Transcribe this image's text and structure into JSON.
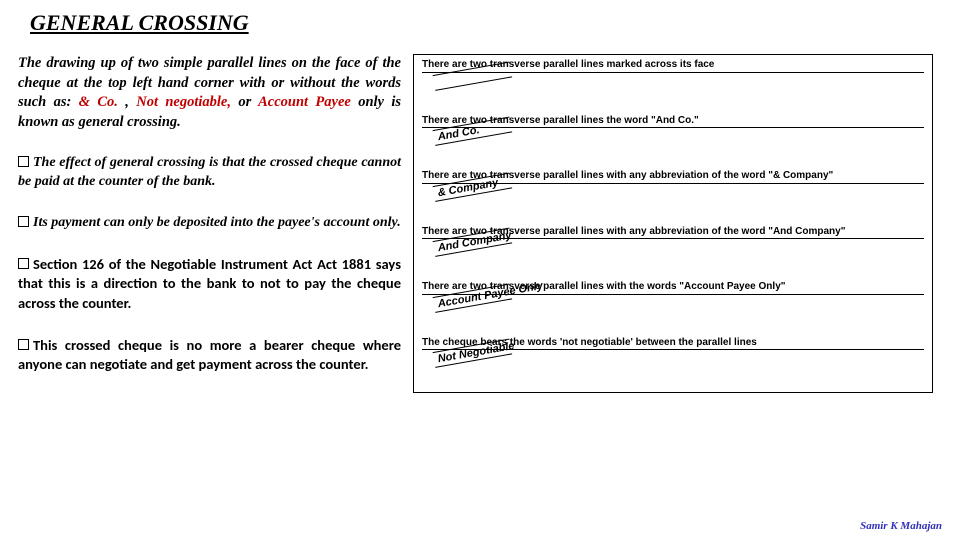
{
  "title": "GENERAL CROSSING",
  "intro": {
    "pre": "The drawing up of two simple parallel lines on the face of the cheque at the top left hand corner with or without the words such as: ",
    "hl1": "& Co. ",
    "mid1": ",  ",
    "hl2": "Not negotiable,",
    "mid2": "   or ",
    "hl3": "Account Payee",
    "post": " only is known as general crossing."
  },
  "paras": {
    "p1": "The effect of general crossing is that the crossed cheque cannot be paid at the counter of the bank.",
    "p2": "Its payment can only be deposited into the payee's account only.",
    "p3": "Section 126 of the Negotiable Instrument Act  Act 1881 says that this is a direction to the bank to not to pay the cheque across the counter.",
    "p4": "This crossed cheque is no more a bearer cheque where anyone can negotiate and get payment across the counter."
  },
  "examples": [
    {
      "desc": "There are two transverse parallel lines marked across its face",
      "mark": ""
    },
    {
      "desc": "There are two transverse parallel lines the word \"And Co.\"",
      "mark": "And Co."
    },
    {
      "desc": "There are two transverse parallel lines with any abbreviation of the word \"& Company\"",
      "mark": "& Company"
    },
    {
      "desc": "There are two transverse parallel lines with any abbreviation of the word \"And Company\"",
      "mark": "And Company"
    },
    {
      "desc": "There are two transverse parallel lines with the words \"Account Payee Only\"",
      "mark": "Account Payee Only"
    },
    {
      "desc": "The cheque bears the words 'not negotiable' between the parallel lines",
      "mark": "Not Negotiable"
    }
  ],
  "footer": "Samir K Mahajan"
}
